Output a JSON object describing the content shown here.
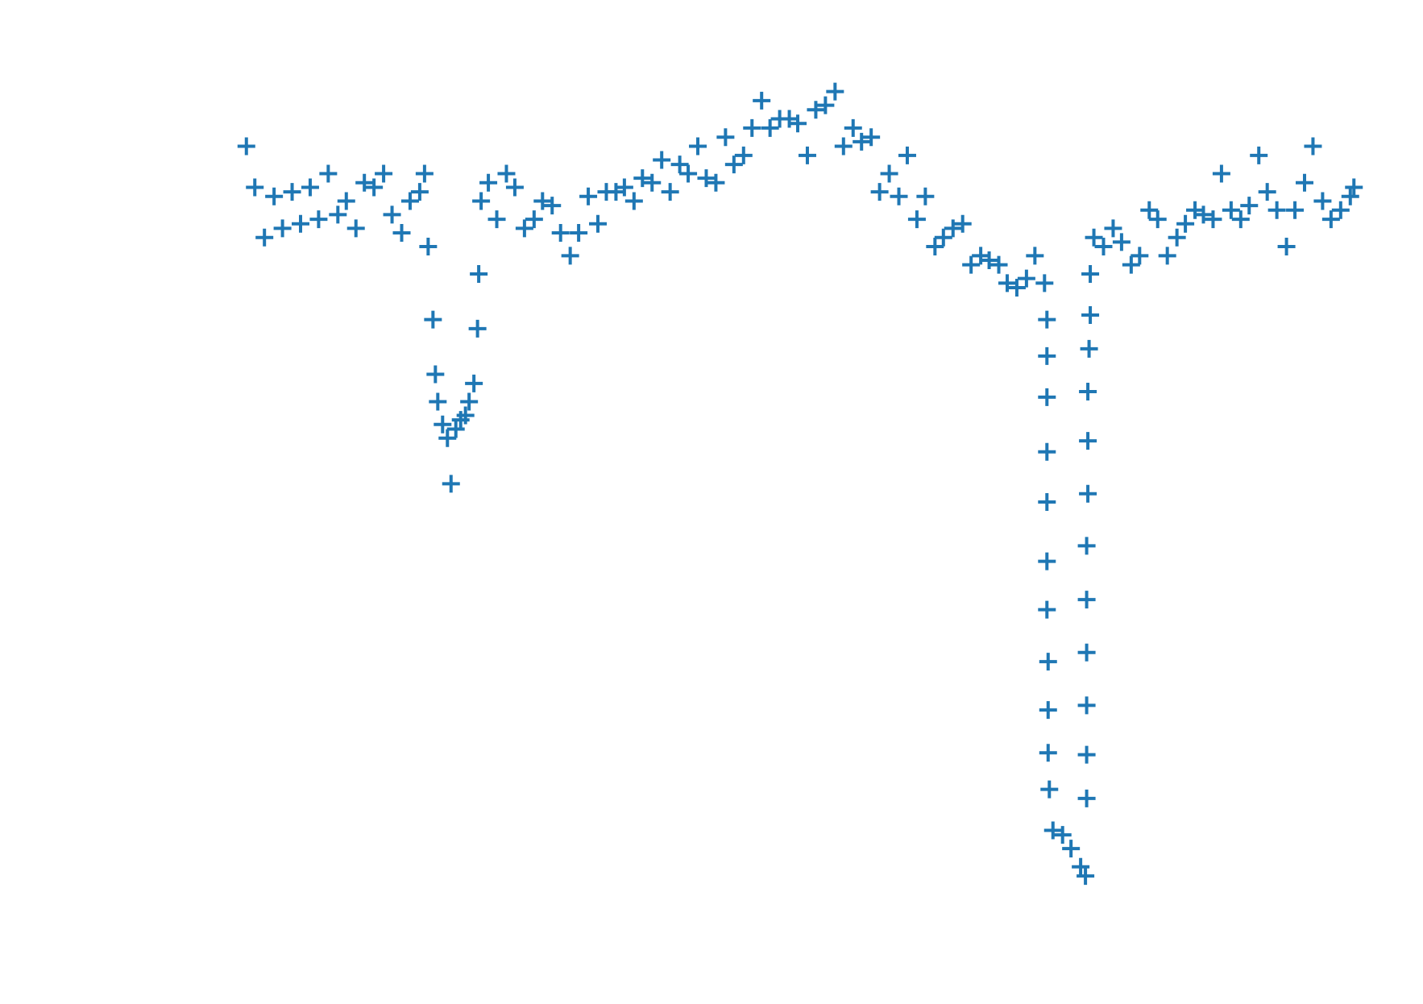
{
  "chart_data": {
    "type": "scatter",
    "marker": "+",
    "color": "#1f77b4",
    "xlim": [
      0,
      1
    ],
    "ylim": [
      0,
      1
    ],
    "x": [
      0.038,
      0.045,
      0.053,
      0.061,
      0.068,
      0.076,
      0.083,
      0.091,
      0.098,
      0.106,
      0.114,
      0.121,
      0.129,
      0.136,
      0.144,
      0.152,
      0.159,
      0.167,
      0.174,
      0.182,
      0.186,
      0.189,
      0.193,
      0.195,
      0.197,
      0.201,
      0.205,
      0.208,
      0.212,
      0.216,
      0.22,
      0.223,
      0.227,
      0.23,
      0.231,
      0.233,
      0.239,
      0.246,
      0.254,
      0.261,
      0.269,
      0.277,
      0.284,
      0.292,
      0.299,
      0.307,
      0.314,
      0.322,
      0.33,
      0.337,
      0.345,
      0.352,
      0.36,
      0.367,
      0.375,
      0.383,
      0.39,
      0.398,
      0.405,
      0.413,
      0.42,
      0.428,
      0.436,
      0.443,
      0.451,
      0.458,
      0.466,
      0.473,
      0.481,
      0.489,
      0.496,
      0.504,
      0.511,
      0.519,
      0.527,
      0.534,
      0.542,
      0.549,
      0.557,
      0.564,
      0.572,
      0.58,
      0.587,
      0.595,
      0.602,
      0.61,
      0.617,
      0.625,
      0.633,
      0.64,
      0.648,
      0.655,
      0.663,
      0.67,
      0.678,
      0.686,
      0.693,
      0.701,
      0.703,
      0.703,
      0.703,
      0.703,
      0.703,
      0.703,
      0.703,
      0.704,
      0.704,
      0.704,
      0.705,
      0.708,
      0.716,
      0.723,
      0.731,
      0.735,
      0.736,
      0.736,
      0.736,
      0.736,
      0.736,
      0.736,
      0.737,
      0.737,
      0.737,
      0.738,
      0.739,
      0.739,
      0.742,
      0.75,
      0.758,
      0.765,
      0.773,
      0.78,
      0.788,
      0.795,
      0.803,
      0.811,
      0.818,
      0.826,
      0.833,
      0.841,
      0.848,
      0.856,
      0.864,
      0.871,
      0.879,
      0.886,
      0.894,
      0.902,
      0.909,
      0.917,
      0.924,
      0.932,
      0.939,
      0.947,
      0.955,
      0.958
    ],
    "values": [
      0.89,
      0.845,
      0.79,
      0.835,
      0.8,
      0.84,
      0.805,
      0.845,
      0.81,
      0.86,
      0.815,
      0.83,
      0.8,
      0.85,
      0.845,
      0.86,
      0.815,
      0.795,
      0.83,
      0.84,
      0.86,
      0.78,
      0.7,
      0.64,
      0.61,
      0.585,
      0.57,
      0.52,
      0.58,
      0.59,
      0.595,
      0.61,
      0.63,
      0.69,
      0.75,
      0.83,
      0.85,
      0.81,
      0.86,
      0.845,
      0.8,
      0.81,
      0.83,
      0.825,
      0.795,
      0.77,
      0.795,
      0.835,
      0.805,
      0.84,
      0.84,
      0.845,
      0.83,
      0.855,
      0.85,
      0.875,
      0.84,
      0.87,
      0.86,
      0.89,
      0.855,
      0.85,
      0.9,
      0.87,
      0.88,
      0.91,
      0.94,
      0.91,
      0.92,
      0.92,
      0.915,
      0.88,
      0.93,
      0.935,
      0.95,
      0.89,
      0.91,
      0.895,
      0.9,
      0.84,
      0.86,
      0.835,
      0.88,
      0.81,
      0.835,
      0.78,
      0.79,
      0.8,
      0.805,
      0.76,
      0.77,
      0.765,
      0.76,
      0.74,
      0.735,
      0.745,
      0.77,
      0.74,
      0.7,
      0.66,
      0.615,
      0.555,
      0.5,
      0.435,
      0.382,
      0.325,
      0.272,
      0.225,
      0.185,
      0.14,
      0.135,
      0.12,
      0.1,
      0.09,
      0.175,
      0.223,
      0.277,
      0.335,
      0.393,
      0.452,
      0.509,
      0.567,
      0.621,
      0.668,
      0.705,
      0.75,
      0.79,
      0.78,
      0.8,
      0.785,
      0.76,
      0.77,
      0.82,
      0.81,
      0.77,
      0.79,
      0.805,
      0.82,
      0.815,
      0.81,
      0.86,
      0.82,
      0.81,
      0.825,
      0.88,
      0.84,
      0.82,
      0.78,
      0.82,
      0.85,
      0.89,
      0.83,
      0.81,
      0.82,
      0.835,
      0.845
    ]
  }
}
